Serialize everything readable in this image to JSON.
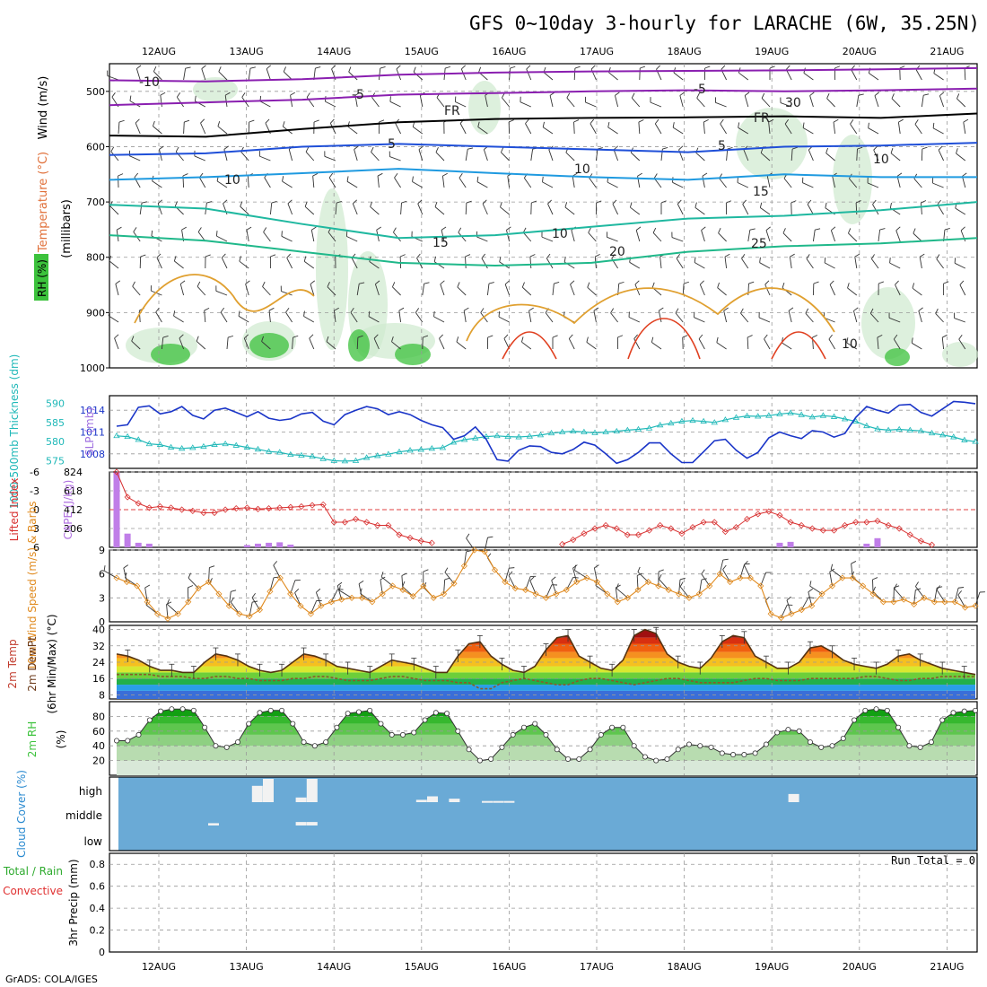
{
  "title": "GFS 0~10day 3-hourly for LARACHE (6W, 35.25N)",
  "footer": "GrADS: COLA/IGES",
  "run_total_label": "Run Total = 0",
  "dates": [
    "12AUG",
    "13AUG",
    "14AUG",
    "15AUG",
    "16AUG",
    "17AUG",
    "18AUG",
    "19AUG",
    "20AUG",
    "21AUG"
  ],
  "colors": {
    "rh_green": "#3cc23c",
    "slp": "#1a35c8",
    "thickness": "#1fb8b8",
    "lifted_index": "#d83030",
    "cape": "#c07ee8",
    "wind": "#e08a1e",
    "cloud_bg": "#6aaad6"
  },
  "chart_data": [
    {
      "type": "line",
      "panel": "upper-air",
      "ylabels": [
        "Wind (m/s)",
        "Temperature (°C)",
        "RH (%)",
        "(millibars)"
      ],
      "yticks": [
        500,
        600,
        700,
        800,
        900,
        1000
      ],
      "ylim": [
        450,
        1000
      ],
      "contour_labels": [
        "-10",
        "-5",
        "FR",
        "5",
        "10",
        "15",
        "20",
        "25",
        "-5",
        "FR",
        "5",
        "10",
        "15",
        "30",
        "10",
        "10",
        "10"
      ],
      "isotherms": [
        {
          "name": "-10",
          "values": [
            480,
            482,
            478,
            470,
            466,
            464,
            463,
            462,
            460,
            458
          ]
        },
        {
          "name": "-5",
          "values": [
            525,
            520,
            515,
            506,
            503,
            500,
            498,
            500,
            498,
            495
          ]
        },
        {
          "name": "FR",
          "values": [
            580,
            582,
            568,
            556,
            550,
            548,
            547,
            545,
            548,
            540
          ]
        },
        {
          "name": "5",
          "values": [
            615,
            612,
            600,
            595,
            600,
            605,
            610,
            600,
            598,
            593
          ]
        },
        {
          "name": "10",
          "values": [
            660,
            655,
            648,
            640,
            648,
            655,
            660,
            650,
            655,
            655
          ]
        },
        {
          "name": "15",
          "values": [
            705,
            712,
            740,
            765,
            760,
            745,
            730,
            725,
            715,
            700
          ]
        },
        {
          "name": "20",
          "values": [
            760,
            770,
            790,
            810,
            815,
            810,
            790,
            780,
            775,
            765
          ]
        }
      ]
    },
    {
      "type": "line",
      "panel": "slp-thickness",
      "ylabel_left": "1000-500mb Thickness (dm)",
      "ylabel_right": "SLP (mb)",
      "yticks_thickness": [
        590,
        585,
        580,
        575
      ],
      "yticks_slp": [
        1014,
        1011,
        1008
      ],
      "series": [
        {
          "name": "SLP (mb)",
          "values": [
            1011.8,
            1012.0,
            1014.4,
            1014.6,
            1013.5,
            1013.8,
            1014.5,
            1013.3,
            1012.8,
            1014.0,
            1014.3,
            1013.7,
            1013.1,
            1013.8,
            1012.9,
            1012.6,
            1012.8,
            1013.5,
            1013.7,
            1012.5,
            1012.0,
            1013.4,
            1014.0,
            1014.5,
            1014.2,
            1013.4,
            1013.8,
            1013.4,
            1012.6,
            1012.0,
            1011.6,
            1010.0,
            1010.5,
            1011.7,
            1010.0,
            1007.2,
            1007.0,
            1008.5,
            1009.1,
            1009.0,
            1008.2,
            1008.0,
            1008.6,
            1009.6,
            1009.2,
            1008.0,
            1006.7,
            1007.2,
            1008.2,
            1009.5,
            1009.5,
            1008.0,
            1006.8,
            1006.8,
            1008.3,
            1009.8,
            1010.0,
            1008.5,
            1007.4,
            1008.2,
            1010.2,
            1011.0,
            1010.5,
            1010.1,
            1011.2,
            1011.0,
            1010.3,
            1010.8,
            1013.0,
            1014.5,
            1014.0,
            1013.6,
            1014.7,
            1014.8,
            1013.7,
            1013.2,
            1014.2,
            1015.2,
            1015.1,
            1014.9
          ]
        },
        {
          "name": "1000-500mb Thickness (dm)",
          "values": [
            581.5,
            581.3,
            580.5,
            579.4,
            579.2,
            578.5,
            578.2,
            578.4,
            578.7,
            579.2,
            579.4,
            579.0,
            578.5,
            578.0,
            577.4,
            577.2,
            576.6,
            576.4,
            576.1,
            575.5,
            575.0,
            574.9,
            575.0,
            575.8,
            576.3,
            576.7,
            577.3,
            577.7,
            577.9,
            578.2,
            578.4,
            579.8,
            580.5,
            580.9,
            581.3,
            581.5,
            581.3,
            581.2,
            581.4,
            581.7,
            582.2,
            582.5,
            582.7,
            582.5,
            582.3,
            582.5,
            582.7,
            583.0,
            583.2,
            583.5,
            584.3,
            584.8,
            585.3,
            585.5,
            585.3,
            585.0,
            585.7,
            586.3,
            586.7,
            586.6,
            586.8,
            587.2,
            587.5,
            587.0,
            586.4,
            586.8,
            586.5,
            585.9,
            585.3,
            584.1,
            583.3,
            583.0,
            583.2,
            583.0,
            582.8,
            582.2,
            581.7,
            581.2,
            580.4,
            580.0
          ]
        }
      ]
    },
    {
      "type": "bar",
      "panel": "lifted-index-cape",
      "ylabel_left": "Lifted Index",
      "ylabel_right": "CAPE (J/kg)",
      "yticks_li": [
        "-6",
        "-3",
        "0",
        "3",
        "6"
      ],
      "yticks_cape": [
        "824",
        "618",
        "412",
        "206"
      ],
      "series": [
        {
          "name": "Lifted Index",
          "values": [
            -6,
            -2,
            -1,
            -0.3,
            -0.5,
            -0.3,
            0,
            0.2,
            0.5,
            0.5,
            0,
            -0.2,
            -0.3,
            -0.1,
            -0.2,
            -0.3,
            -0.4,
            -0.5,
            -0.7,
            -0.8,
            2,
            2,
            1.5,
            2,
            2.5,
            2.5,
            4,
            4.5,
            5,
            5.3,
            null,
            null,
            null,
            null,
            null,
            null,
            null,
            null,
            null,
            null,
            null,
            5.5,
            4.8,
            3.8,
            3,
            2.5,
            3,
            4,
            4,
            3.3,
            2.5,
            3,
            3.8,
            2.8,
            2,
            2,
            3.5,
            2.8,
            1.5,
            0.7,
            0.3,
            0.9,
            2,
            2.5,
            3,
            3.3,
            3.3,
            2.5,
            2,
            2,
            1.8,
            2.5,
            3,
            4,
            5,
            5.6,
            null,
            null,
            null,
            null
          ]
        },
        {
          "name": "CAPE (J/kg)",
          "values": [
            820,
            150,
            50,
            40,
            0,
            0,
            0,
            0,
            0,
            0,
            0,
            0,
            25,
            40,
            50,
            55,
            30,
            0,
            0,
            0,
            0,
            0,
            0,
            0,
            0,
            0,
            0,
            0,
            0,
            0,
            0,
            0,
            0,
            0,
            0,
            0,
            0,
            0,
            0,
            0,
            0,
            0,
            0,
            0,
            0,
            0,
            0,
            0,
            0,
            0,
            0,
            0,
            0,
            0,
            0,
            0,
            0,
            0,
            0,
            0,
            0,
            50,
            60,
            0,
            0,
            0,
            0,
            0,
            0,
            40,
            100,
            0,
            0,
            0,
            0,
            0,
            0,
            0,
            0,
            0
          ]
        }
      ]
    },
    {
      "type": "line",
      "panel": "10m-wind",
      "ylabel": "10m Wind Speed (m/s) & Barbs",
      "yticks": [
        9,
        6,
        3,
        0
      ],
      "ylim": [
        0,
        9
      ],
      "series": [
        {
          "name": "10m Wind Speed (m/s)",
          "values": [
            5.5,
            5.0,
            4.5,
            2.5,
            1.0,
            0.4,
            1.0,
            2.5,
            4.2,
            5.0,
            3.5,
            2.0,
            1.0,
            0.7,
            1.5,
            3.8,
            5.5,
            3.5,
            2.0,
            1.0,
            2.0,
            2.5,
            2.8,
            3.0,
            3.0,
            2.5,
            3.5,
            4.5,
            4.0,
            3.2,
            4.5,
            3.0,
            3.5,
            4.8,
            7.0,
            9.0,
            8.8,
            6.5,
            5.0,
            4.2,
            4.0,
            3.5,
            3.0,
            3.5,
            4.0,
            5.0,
            5.5,
            5.0,
            3.5,
            2.5,
            3.0,
            4.0,
            5.0,
            4.5,
            4.0,
            3.5,
            3.0,
            3.5,
            4.5,
            6.0,
            5.0,
            5.5,
            5.5,
            4.5,
            1.0,
            0.5,
            1.0,
            1.5,
            2.0,
            3.5,
            4.5,
            5.5,
            5.5,
            4.5,
            3.5,
            2.5,
            2.5,
            2.8,
            2.2,
            3.0,
            2.5,
            2.5,
            2.5,
            1.8,
            2.0
          ]
        }
      ]
    },
    {
      "type": "area",
      "panel": "2m-temp",
      "ylabel": "2m Temp 2m DewPt (6hr Min/Max) (°C)",
      "yticks": [
        40,
        32,
        24,
        16,
        8
      ],
      "ylim": [
        6,
        42
      ],
      "series": [
        {
          "name": "2m Temp (°C)",
          "values": [
            28,
            27,
            25,
            22,
            20,
            20,
            19,
            19,
            24,
            28,
            27,
            25,
            22,
            20,
            19,
            20,
            24,
            28,
            27,
            25,
            22,
            21,
            20,
            19,
            22,
            25,
            24,
            23,
            21,
            19,
            19,
            27,
            33,
            34,
            27,
            23,
            20,
            19,
            22,
            30,
            36,
            37,
            27,
            24,
            21,
            20,
            25,
            37,
            40,
            38,
            28,
            24,
            22,
            21,
            26,
            34,
            37,
            36,
            27,
            24,
            21,
            21,
            24,
            31,
            32,
            29,
            25,
            23,
            22,
            21,
            23,
            27,
            28,
            25,
            23,
            21,
            20,
            19,
            18
          ]
        },
        {
          "name": "2m DewPt (°C)",
          "values": [
            18,
            18,
            18,
            18,
            17,
            17,
            17,
            16,
            16,
            17,
            17,
            16,
            16,
            15,
            15,
            15,
            16,
            16,
            17,
            17,
            16,
            15,
            15,
            15,
            16,
            17,
            17,
            16,
            15,
            15,
            15,
            14,
            14,
            11,
            11,
            14,
            15,
            16,
            15,
            14,
            13,
            13,
            15,
            16,
            16,
            15,
            14,
            13,
            14,
            15,
            16,
            16,
            15,
            14,
            14,
            14,
            14,
            15,
            16,
            16,
            15,
            15,
            15,
            16,
            16,
            16,
            16,
            16,
            17,
            17,
            16,
            15,
            15,
            16,
            16,
            17,
            17,
            17,
            17
          ]
        }
      ]
    },
    {
      "type": "area",
      "panel": "2m-rh",
      "ylabel": "2m RH (%)",
      "yticks": [
        80,
        60,
        40,
        20
      ],
      "ylim": [
        0,
        100
      ],
      "series": [
        {
          "name": "2m RH (%)",
          "values": [
            47,
            47,
            55,
            75,
            87,
            90,
            90,
            88,
            65,
            40,
            38,
            45,
            70,
            85,
            88,
            88,
            70,
            45,
            40,
            45,
            65,
            84,
            86,
            88,
            70,
            55,
            55,
            58,
            75,
            85,
            84,
            60,
            35,
            20,
            22,
            38,
            55,
            65,
            70,
            55,
            35,
            22,
            22,
            35,
            55,
            65,
            65,
            40,
            25,
            20,
            22,
            35,
            42,
            40,
            38,
            30,
            28,
            28,
            30,
            42,
            58,
            62,
            60,
            45,
            38,
            40,
            50,
            75,
            88,
            90,
            88,
            65,
            40,
            38,
            45,
            75,
            85,
            87,
            88
          ]
        }
      ]
    },
    {
      "type": "bar",
      "panel": "cloud-cover",
      "ylabel": "Cloud Cover (%)",
      "ylevels": [
        "high",
        "middle",
        "low"
      ],
      "series": [
        {
          "name": "high",
          "periods": [
            "13AUG 03Z",
            "13AUG 06Z",
            "13AUG 15Z",
            "13AUG 18Z",
            "15AUG 00Z",
            "15AUG 03Z",
            "15AUG 09Z",
            "15AUG 18Z",
            "15AUG 21Z",
            "16AUG 00Z",
            "19AUG 06Z"
          ],
          "values": [
            70,
            100,
            20,
            100,
            10,
            25,
            15,
            5,
            5,
            5,
            35
          ]
        },
        {
          "name": "middle",
          "periods": [
            "12AUG 15Z",
            "13AUG 15Z",
            "13AUG 18Z"
          ],
          "values": [
            10,
            15,
            15
          ]
        }
      ]
    },
    {
      "type": "bar",
      "panel": "precip",
      "ylabel": "3hr Precip (mm)",
      "legend": [
        "Total / Rain",
        "Convective"
      ],
      "yticks": [
        "0.8",
        "0.6",
        "0.4",
        "0.2",
        "0"
      ],
      "ylim": [
        0,
        0.9
      ],
      "series": [
        {
          "name": "Total / Rain",
          "values": []
        },
        {
          "name": "Convective",
          "values": []
        }
      ]
    }
  ]
}
